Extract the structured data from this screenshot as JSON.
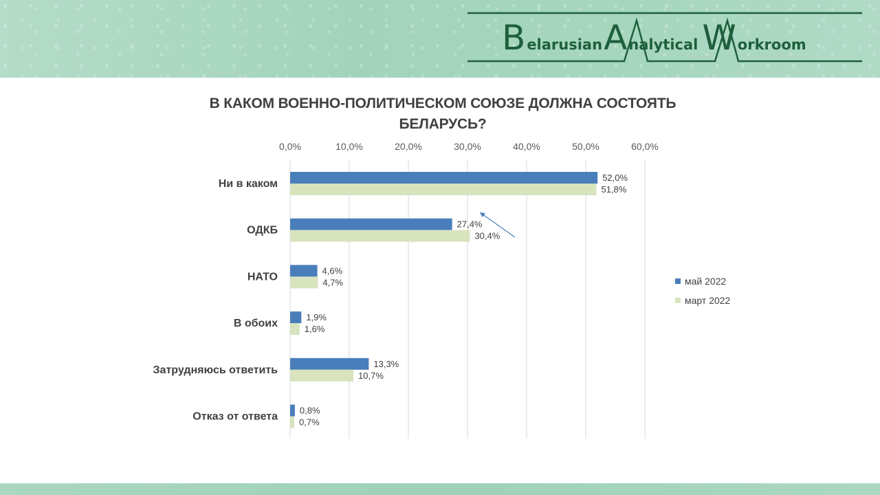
{
  "brand": {
    "b_letter": "B",
    "b_rest": "elarusian",
    "a_letter": "A",
    "a_rest": "nalytical",
    "w_letter": "W",
    "w_rest": "orkroom",
    "color": "#1e5f3c"
  },
  "chart_data": {
    "type": "bar",
    "orientation": "horizontal",
    "title_line1": "В КАКОМ ВОЕННО-ПОЛИТИЧЕСКОМ  СОЮЗЕ ДОЛЖНА СОСТОЯТЬ",
    "title_line2": "БЕЛАРУСЬ?",
    "categories": [
      "Ни в каком",
      "ОДКБ",
      "НАТО",
      "В обоих",
      "Затрудняюсь ответить",
      "Отказ от ответа"
    ],
    "series": [
      {
        "name": "май 2022",
        "color": "#4a7ebb",
        "values": [
          52.0,
          27.4,
          4.6,
          1.9,
          13.3,
          0.8
        ],
        "labels": [
          "52,0%",
          "27,4%",
          "4,6%",
          "1,9%",
          "13,3%",
          "0,8%"
        ]
      },
      {
        "name": "март 2022",
        "color": "#d7e4bd",
        "values": [
          51.8,
          30.4,
          4.7,
          1.6,
          10.7,
          0.7
        ],
        "labels": [
          "51,8%",
          "30,4%",
          "4,7%",
          "1,6%",
          "10,7%",
          "0,7%"
        ]
      }
    ],
    "xlim": [
      0,
      60
    ],
    "x_ticks": [
      "0,0%",
      "10,0%",
      "20,0%",
      "30,0%",
      "40,0%",
      "50,0%",
      "60,0%"
    ],
    "tick_axis_position": "top",
    "grid": true,
    "legend_position": "right",
    "annotation": "arrow pointing up-left from the ОДКБ bars"
  }
}
